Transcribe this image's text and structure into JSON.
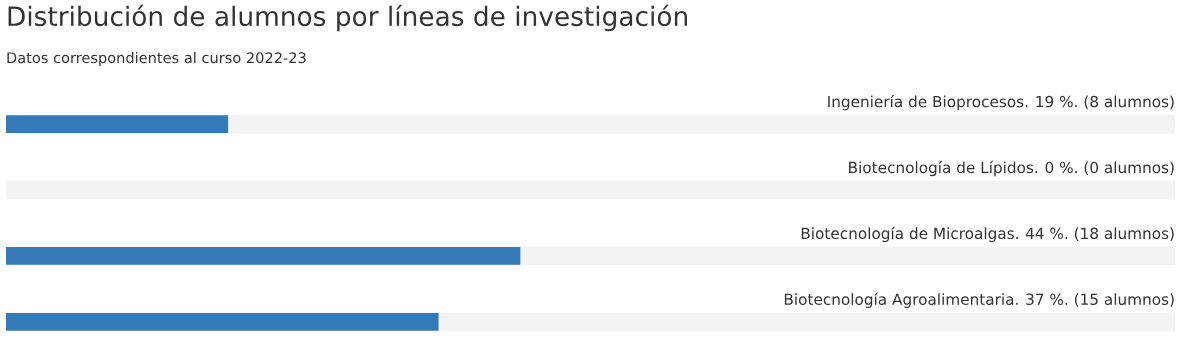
{
  "chart_data": {
    "type": "bar",
    "orientation": "horizontal",
    "title": "Distribución de alumnos por líneas de investigación",
    "subtitle": "Datos correspondientes al curso 2022-23",
    "categories": [
      "Ingeniería de Bioprocesos.",
      "Biotecnología de Lípidos.",
      "Biotecnología de Microalgas.",
      "Biotecnología Agroalimentaria."
    ],
    "values": [
      19,
      0,
      44,
      37
    ],
    "value_labels": [
      "19 %. (8 alumnos)",
      "0 %. (0 alumnos)",
      "44 %. (18 alumnos)",
      "37 %. (15 alumnos)"
    ],
    "color": "#337ab7",
    "xlim": [
      0,
      100
    ],
    "tick_labels": false
  }
}
